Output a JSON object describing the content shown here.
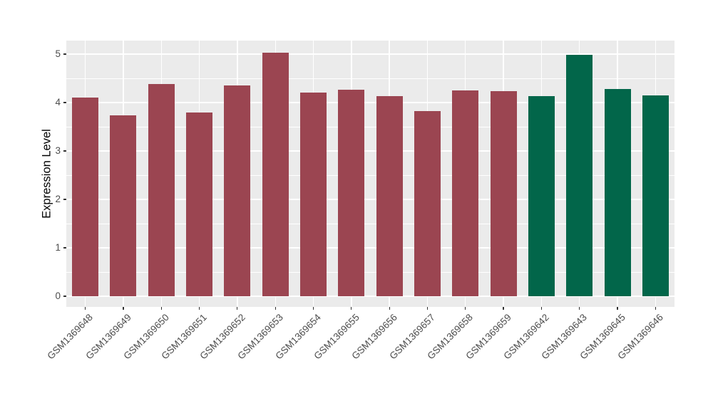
{
  "chart_data": {
    "type": "bar",
    "title": "",
    "xlabel": "",
    "ylabel": "Expression Level",
    "categories": [
      "GSM1369648",
      "GSM1369649",
      "GSM1369650",
      "GSM1369651",
      "GSM1369652",
      "GSM1369653",
      "GSM1369654",
      "GSM1369655",
      "GSM1369656",
      "GSM1369657",
      "GSM1369658",
      "GSM1369659",
      "GSM1369642",
      "GSM1369643",
      "GSM1369645",
      "GSM1369646"
    ],
    "values": [
      4.1,
      3.73,
      4.39,
      3.79,
      4.35,
      5.03,
      4.2,
      4.27,
      4.14,
      3.82,
      4.25,
      4.24,
      4.13,
      4.99,
      4.28,
      4.15
    ],
    "groups": [
      "A",
      "A",
      "A",
      "A",
      "A",
      "A",
      "A",
      "A",
      "A",
      "A",
      "A",
      "A",
      "B",
      "B",
      "B",
      "B"
    ],
    "group_colors": {
      "A": "#9b4551",
      "B": "#02664a"
    },
    "yticks": [
      0,
      1,
      2,
      3,
      4,
      5
    ],
    "ytick_labels": [
      "0",
      "1",
      "2",
      "3",
      "4",
      "5"
    ],
    "minor_yticks": [
      0.5,
      1.5,
      2.5,
      3.5,
      4.5
    ],
    "ylim": [
      -0.22,
      5.28
    ],
    "grid": "white major and minor horizontal lines, white vertical line at each category center",
    "legend_position": "none",
    "style_colors": {
      "panel_background": "#ebebeb",
      "figure_background": "#ffffff",
      "grid_line": "#ffffff",
      "tick_mark": "#333333",
      "tick_label": "#4d4d4d",
      "axis_title": "#000000"
    }
  }
}
